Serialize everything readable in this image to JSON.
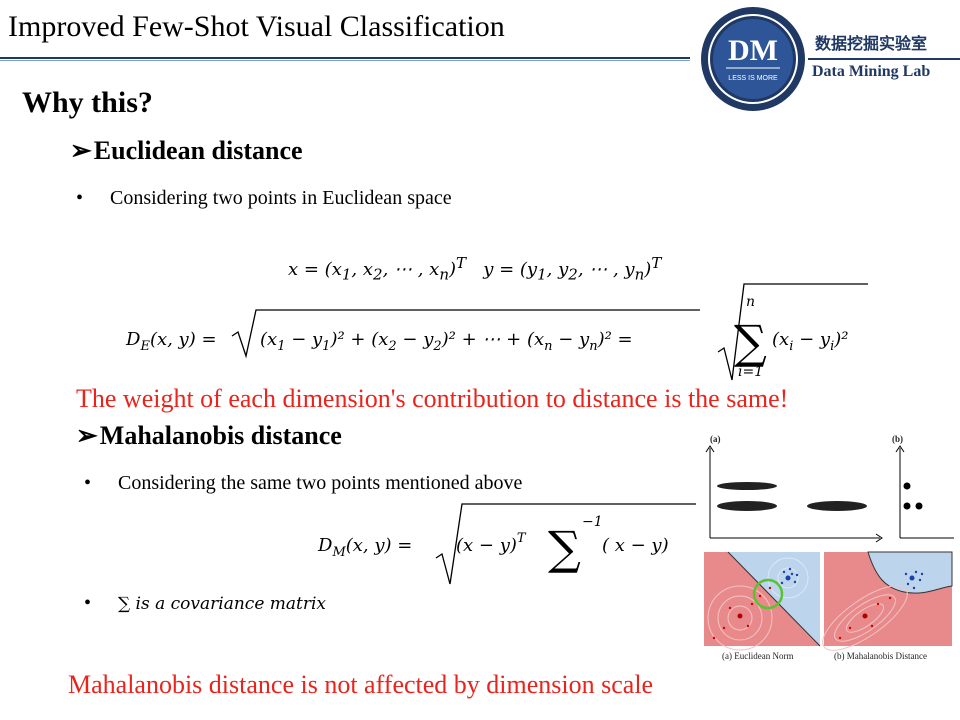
{
  "slide": {
    "title": "Improved Few-Shot Visual Classification",
    "lab_logo": {
      "initials": "DM",
      "motto": "LESS IS MORE",
      "name_cn": "数据挖掘实验室",
      "name_en": "Data Mining Lab",
      "brand_color": "#1f3864"
    },
    "heading": "Why this?",
    "euclidean": {
      "heading": "Euclidean distance",
      "bullet": "Considering two points in Euclidean space",
      "note": "The weight of each dimension's contribution to distance is the same!"
    },
    "mahalanobis": {
      "heading": "Mahalanobis distance",
      "bullet1": "Considering  the same two points mentioned above",
      "bullet2": "is a covariance matrix",
      "note": "Mahalanobis distance is not affected by dimension scale"
    },
    "figure": {
      "panel_a": "(a)",
      "panel_b": "(b)",
      "caption_left": "(a) Euclidean Norm",
      "caption_right": "(b) Mahalanobis Distance"
    },
    "accent_red": "#e8241c"
  }
}
